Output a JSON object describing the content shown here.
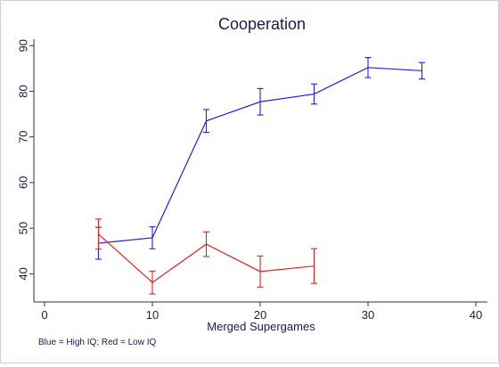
{
  "chart_data": {
    "type": "line",
    "title": "Cooperation",
    "xlabel": "Merged Supergames",
    "ylabel": "",
    "xlim": [
      0,
      40
    ],
    "ylim": [
      35,
      92
    ],
    "xticks": [
      0,
      10,
      20,
      30,
      40
    ],
    "yticks": [
      40,
      50,
      60,
      70,
      80,
      90
    ],
    "grid": false,
    "note": "Blue = High IQ; Red = Low IQ",
    "series": [
      {
        "color": "#1f1fe6",
        "x": [
          5,
          10,
          15,
          20,
          25,
          30,
          35
        ],
        "y": [
          46.7,
          47.9,
          73.5,
          77.7,
          79.4,
          85.2,
          84.5
        ],
        "err_low": [
          43.2,
          45.5,
          71.0,
          74.8,
          77.2,
          83.0,
          82.7
        ],
        "err_high": [
          50.2,
          50.3,
          76.0,
          80.6,
          81.6,
          87.4,
          86.3
        ]
      },
      {
        "color": "#e61f1f",
        "x": [
          5,
          10,
          15,
          20,
          25
        ],
        "y": [
          48.7,
          38.1,
          46.5,
          40.5,
          41.7
        ],
        "err_low": [
          45.4,
          35.6,
          43.8,
          37.1,
          37.9
        ],
        "err_high": [
          52.0,
          40.6,
          49.2,
          43.9,
          45.5
        ]
      }
    ]
  }
}
